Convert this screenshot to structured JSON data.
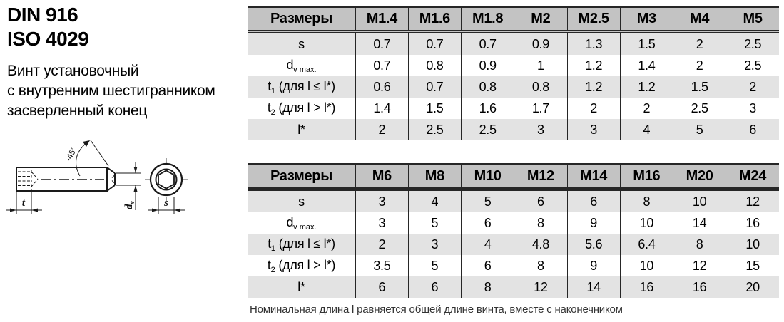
{
  "page": {
    "standard_line1": "DIN 916",
    "standard_line2": "ISO 4029",
    "description_lines": [
      "Винт установочный",
      "с внутренним шестигранником",
      "засверленный конец"
    ],
    "note": "Номинальная длина l равняется общей длине винта, вместе с наконечником"
  },
  "colors": {
    "header_bg": "#c3c3c3",
    "row_shaded_bg": "#e3e3e3",
    "table_line": "#262626",
    "text": "#000000",
    "note_text": "#333333"
  },
  "drawing": {
    "labels": {
      "socket_depth": "t",
      "point_diameter_main": "d",
      "point_diameter_sub": "v",
      "hex_size": "s",
      "chamfer_angle": "-45°"
    }
  },
  "tables": [
    {
      "header": [
        "Размеры",
        "M1.4",
        "M1.6",
        "M1.8",
        "M2",
        "M2.5",
        "M3",
        "M4",
        "M5"
      ],
      "rows": [
        {
          "label": [
            {
              "text": "s"
            }
          ],
          "values": [
            "0.7",
            "0.7",
            "0.7",
            "0.9",
            "1.3",
            "1.5",
            "2",
            "2.5"
          ]
        },
        {
          "label": [
            {
              "text": "d"
            },
            {
              "text": "v max.",
              "sub": true
            }
          ],
          "values": [
            "0.7",
            "0.8",
            "0.9",
            "1",
            "1.2",
            "1.4",
            "2",
            "2.5"
          ]
        },
        {
          "label": [
            {
              "text": "t"
            },
            {
              "text": "1",
              "sub": true
            },
            {
              "text": " (для l ≤ l*)"
            }
          ],
          "values": [
            "0.6",
            "0.7",
            "0.8",
            "0.8",
            "1.2",
            "1.2",
            "1.5",
            "2"
          ]
        },
        {
          "label": [
            {
              "text": "t"
            },
            {
              "text": "2",
              "sub": true
            },
            {
              "text": " (для l > l*)"
            }
          ],
          "values": [
            "1.4",
            "1.5",
            "1.6",
            "1.7",
            "2",
            "2",
            "2.5",
            "3"
          ]
        },
        {
          "label": [
            {
              "text": "l*"
            }
          ],
          "values": [
            "2",
            "2.5",
            "2.5",
            "3",
            "3",
            "4",
            "5",
            "6"
          ]
        }
      ]
    },
    {
      "header": [
        "Размеры",
        "M6",
        "M8",
        "M10",
        "M12",
        "M14",
        "M16",
        "M20",
        "M24"
      ],
      "rows": [
        {
          "label": [
            {
              "text": "s"
            }
          ],
          "values": [
            "3",
            "4",
            "5",
            "6",
            "6",
            "8",
            "10",
            "12"
          ]
        },
        {
          "label": [
            {
              "text": "d"
            },
            {
              "text": "v max.",
              "sub": true
            }
          ],
          "values": [
            "3",
            "5",
            "6",
            "8",
            "9",
            "10",
            "14",
            "16"
          ]
        },
        {
          "label": [
            {
              "text": "t"
            },
            {
              "text": "1",
              "sub": true
            },
            {
              "text": " (для l ≤ l*)"
            }
          ],
          "values": [
            "2",
            "3",
            "4",
            "4.8",
            "5.6",
            "6.4",
            "8",
            "10"
          ]
        },
        {
          "label": [
            {
              "text": "t"
            },
            {
              "text": "2",
              "sub": true
            },
            {
              "text": " (для l > l*)"
            }
          ],
          "values": [
            "3.5",
            "5",
            "6",
            "8",
            "9",
            "10",
            "12",
            "15"
          ]
        },
        {
          "label": [
            {
              "text": "l*"
            }
          ],
          "values": [
            "6",
            "6",
            "8",
            "12",
            "14",
            "16",
            "16",
            "20"
          ]
        }
      ]
    }
  ]
}
